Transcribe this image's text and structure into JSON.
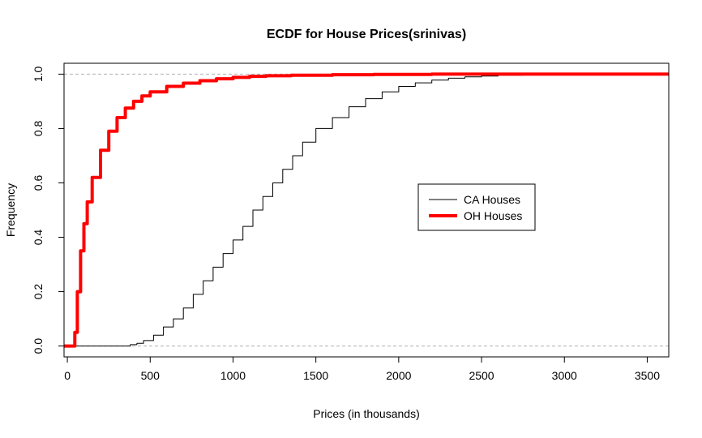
{
  "chart_data": {
    "type": "line",
    "title": "ECDF for House Prices(srinivas)",
    "xlabel": "Prices (in thousands)",
    "ylabel": "Frequency",
    "xlim": [
      -20,
      3630
    ],
    "ylim": [
      -0.04,
      1.04
    ],
    "x_ticks": [
      0,
      500,
      1000,
      1500,
      2000,
      2500,
      3000,
      3500
    ],
    "x_tick_labels": [
      "0",
      "500",
      "1000",
      "1500",
      "2000",
      "2500",
      "3000",
      "3500"
    ],
    "y_ticks": [
      0,
      0.2,
      0.4,
      0.6,
      0.8,
      1
    ],
    "y_tick_labels": [
      "0.0",
      "0.2",
      "0.4",
      "0.6",
      "0.8",
      "1.0"
    ],
    "reference_lines": [
      0,
      1
    ],
    "legend_position": "center-right",
    "series": [
      {
        "name": "CA Houses",
        "color": "#000000",
        "line_width": 1,
        "step": true,
        "points": [
          [
            -20,
            0
          ],
          [
            350,
            0
          ],
          [
            380,
            0.005
          ],
          [
            420,
            0.01
          ],
          [
            460,
            0.02
          ],
          [
            520,
            0.04
          ],
          [
            580,
            0.07
          ],
          [
            640,
            0.1
          ],
          [
            700,
            0.14
          ],
          [
            760,
            0.19
          ],
          [
            820,
            0.24
          ],
          [
            880,
            0.29
          ],
          [
            940,
            0.34
          ],
          [
            1000,
            0.39
          ],
          [
            1060,
            0.44
          ],
          [
            1120,
            0.5
          ],
          [
            1180,
            0.55
          ],
          [
            1240,
            0.6
          ],
          [
            1300,
            0.65
          ],
          [
            1360,
            0.7
          ],
          [
            1420,
            0.75
          ],
          [
            1500,
            0.8
          ],
          [
            1600,
            0.84
          ],
          [
            1700,
            0.88
          ],
          [
            1800,
            0.91
          ],
          [
            1900,
            0.935
          ],
          [
            2000,
            0.955
          ],
          [
            2100,
            0.968
          ],
          [
            2200,
            0.978
          ],
          [
            2300,
            0.985
          ],
          [
            2400,
            0.99
          ],
          [
            2500,
            0.993
          ],
          [
            2600,
            0.996
          ],
          [
            2750,
            1.0
          ]
        ]
      },
      {
        "name": "OH Houses",
        "color": "#ff0000",
        "line_width": 4,
        "step": true,
        "points": [
          [
            -20,
            0
          ],
          [
            40,
            0
          ],
          [
            45,
            0.05
          ],
          [
            60,
            0.2
          ],
          [
            80,
            0.35
          ],
          [
            100,
            0.45
          ],
          [
            120,
            0.53
          ],
          [
            150,
            0.62
          ],
          [
            200,
            0.72
          ],
          [
            250,
            0.79
          ],
          [
            300,
            0.84
          ],
          [
            350,
            0.875
          ],
          [
            400,
            0.9
          ],
          [
            450,
            0.92
          ],
          [
            500,
            0.935
          ],
          [
            600,
            0.955
          ],
          [
            700,
            0.967
          ],
          [
            800,
            0.976
          ],
          [
            900,
            0.983
          ],
          [
            1000,
            0.988
          ],
          [
            1100,
            0.992
          ],
          [
            1200,
            0.994
          ],
          [
            1350,
            0.996
          ],
          [
            1600,
            0.998
          ],
          [
            1850,
            0.999
          ],
          [
            2200,
            1.0
          ],
          [
            3630,
            1.0
          ]
        ]
      }
    ]
  }
}
